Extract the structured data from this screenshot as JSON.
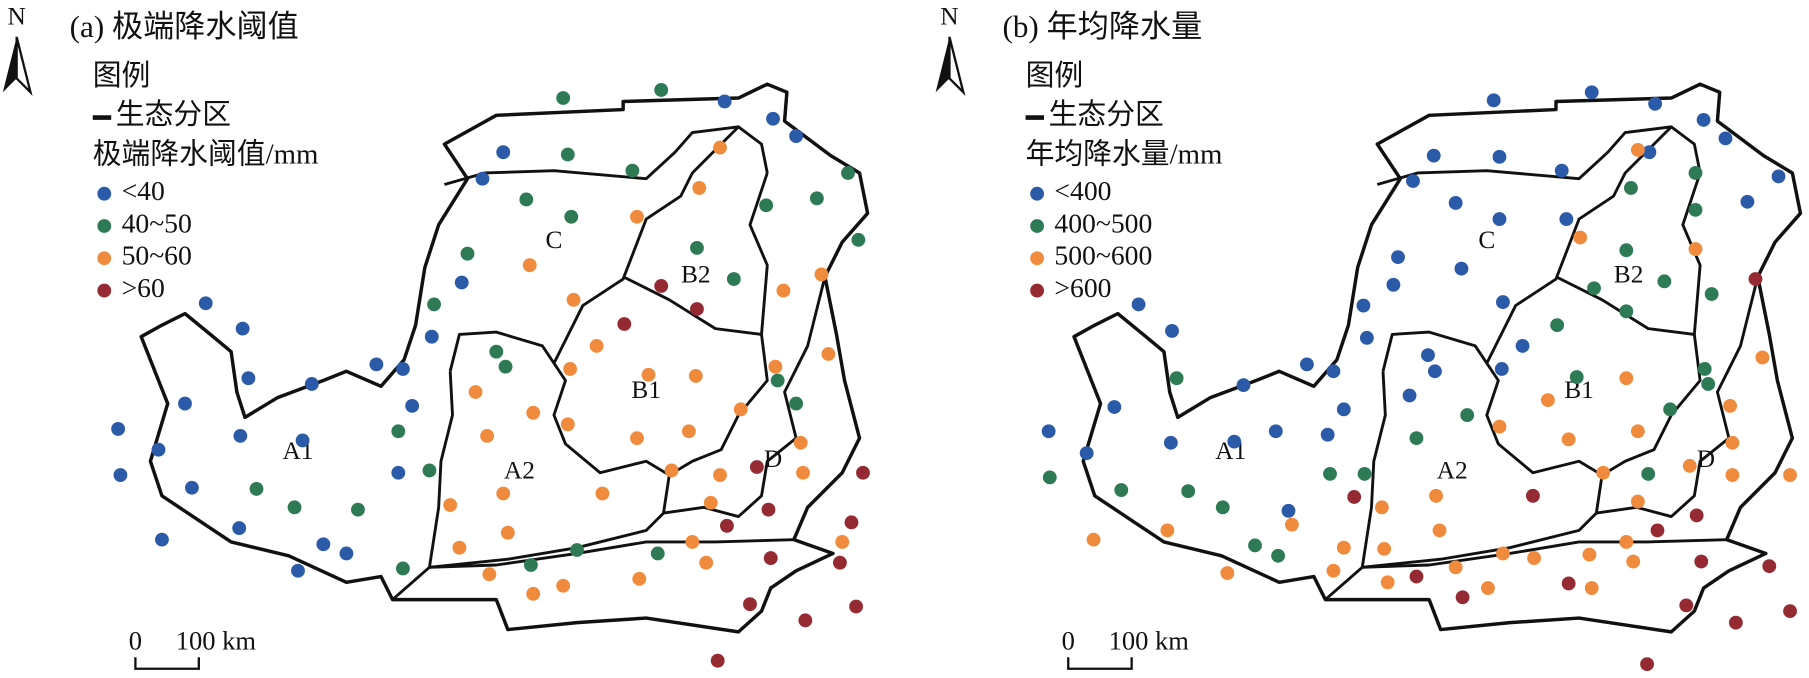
{
  "panels": [
    {
      "title": "(a) 极端降水阈值",
      "north": "N",
      "legend": {
        "title": "图例",
        "boundary": "生态分区",
        "heading": "极端降水阈值/mm",
        "items": [
          "<40",
          "40~50",
          "50~60",
          ">60"
        ],
        "colors": [
          "#2b5ba8",
          "#2e7a55",
          "#f08a3c",
          "#962a33"
        ]
      },
      "zones": [
        "C",
        "B2",
        "B1",
        "A1",
        "A2",
        "D"
      ],
      "scale": {
        "zero": "0",
        "label": "100 km"
      }
    },
    {
      "title": "(b) 年均降水量",
      "north": "N",
      "legend": {
        "title": "图例",
        "boundary": "生态分区",
        "heading": "年均降水量/mm",
        "items": [
          "<400",
          "400~500",
          "500~600",
          ">600"
        ],
        "colors": [
          "#2b5ba8",
          "#2e7a55",
          "#f08a3c",
          "#962a33"
        ]
      },
      "zones": [
        "C",
        "B2",
        "B1",
        "A1",
        "A2",
        "D"
      ],
      "scale": {
        "zero": "0",
        "label": "100 km"
      }
    }
  ]
}
